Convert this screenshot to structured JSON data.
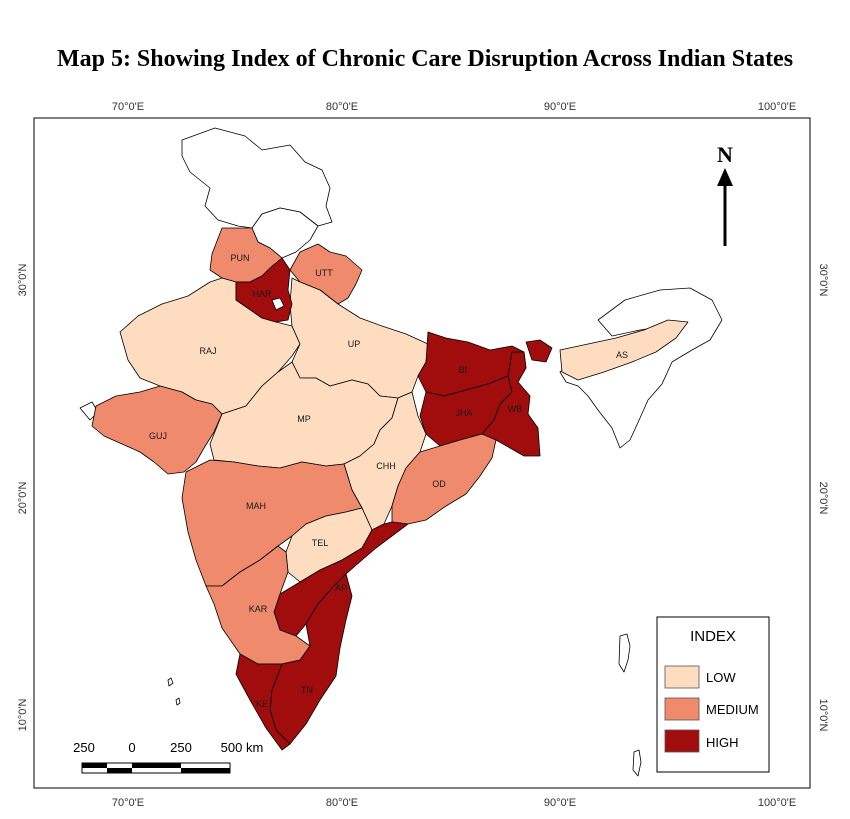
{
  "title": "Map 5: Showing Index of Chronic Care Disruption Across Indian States",
  "axes": {
    "top": [
      "70°0'E",
      "80°0'E",
      "90°0'E",
      "100°0'E"
    ],
    "bottom": [
      "70°0'E",
      "80°0'E",
      "90°0'E",
      "100°0'E"
    ],
    "left": [
      "30°0'N",
      "20°0'N",
      "10°0'N"
    ],
    "right": [
      "30°0'N",
      "20°0'N",
      "10°0'N"
    ]
  },
  "north": "N",
  "legend": {
    "title": "INDEX",
    "items": [
      {
        "label": "LOW",
        "color": "#fddcc0"
      },
      {
        "label": "MEDIUM",
        "color": "#ef8a6c"
      },
      {
        "label": "HIGH",
        "color": "#a10d0d"
      }
    ]
  },
  "scale": {
    "labels": [
      "250",
      "0",
      "250",
      "500 km"
    ]
  },
  "colors": {
    "none": "#ffffff",
    "low": "#fddcc0",
    "medium": "#ef8a6c",
    "high": "#a10d0d"
  },
  "states": [
    {
      "abbr": "PUN",
      "index": "MEDIUM"
    },
    {
      "abbr": "HAR",
      "index": "HIGH"
    },
    {
      "abbr": "UTT",
      "index": "MEDIUM"
    },
    {
      "abbr": "RAJ",
      "index": "LOW"
    },
    {
      "abbr": "UP",
      "index": "LOW"
    },
    {
      "abbr": "BI",
      "index": "HIGH"
    },
    {
      "abbr": "AS",
      "index": "LOW"
    },
    {
      "abbr": "GUJ",
      "index": "MEDIUM"
    },
    {
      "abbr": "MP",
      "index": "LOW"
    },
    {
      "abbr": "JHA",
      "index": "HIGH"
    },
    {
      "abbr": "WB",
      "index": "HIGH"
    },
    {
      "abbr": "CHH",
      "index": "LOW"
    },
    {
      "abbr": "OD",
      "index": "MEDIUM"
    },
    {
      "abbr": "MAH",
      "index": "MEDIUM"
    },
    {
      "abbr": "TEL",
      "index": "LOW"
    },
    {
      "abbr": "AP",
      "index": "HIGH"
    },
    {
      "abbr": "KAR",
      "index": "MEDIUM"
    },
    {
      "abbr": "TN",
      "index": "HIGH"
    },
    {
      "abbr": "KE",
      "index": "HIGH"
    }
  ]
}
